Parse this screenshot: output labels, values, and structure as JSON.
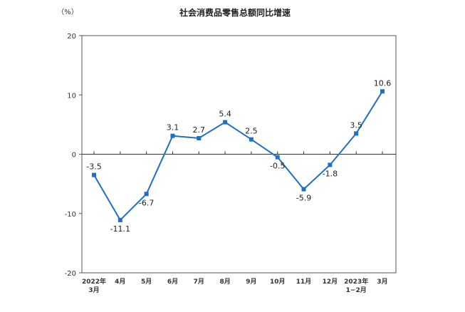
{
  "chart_data": {
    "type": "line",
    "title": "社会消费品零售总额同比增速",
    "unit_label": "（%）",
    "xlabel": "",
    "ylabel": "",
    "ylim": [
      -20,
      20
    ],
    "yticks": [
      -20,
      -10,
      0,
      10,
      20
    ],
    "categories": [
      [
        "2022年",
        "3月"
      ],
      [
        "4月"
      ],
      [
        "5月"
      ],
      [
        "6月"
      ],
      [
        "7月"
      ],
      [
        "8月"
      ],
      [
        "9月"
      ],
      [
        "10月"
      ],
      [
        "11月"
      ],
      [
        "12月"
      ],
      [
        "2023年",
        "1−2月"
      ],
      [
        "3月"
      ]
    ],
    "series": [
      {
        "values": [
          -3.5,
          -11.1,
          -6.7,
          3.1,
          2.7,
          5.4,
          2.5,
          -0.5,
          -5.9,
          -1.8,
          3.5,
          10.6
        ],
        "labels": [
          "-3.5",
          "-11.1",
          "-6.7",
          "3.1",
          "2.7",
          "5.4",
          "2.5",
          "-0.5",
          "-5.9",
          "-1.8",
          "3.5",
          "10.6"
        ],
        "label_position": [
          "above",
          "below",
          "below",
          "above",
          "above",
          "above",
          "above",
          "below",
          "below",
          "below",
          "above",
          "above"
        ]
      }
    ],
    "line_color": "#1f6fc4",
    "grid": false,
    "legend": "none"
  }
}
